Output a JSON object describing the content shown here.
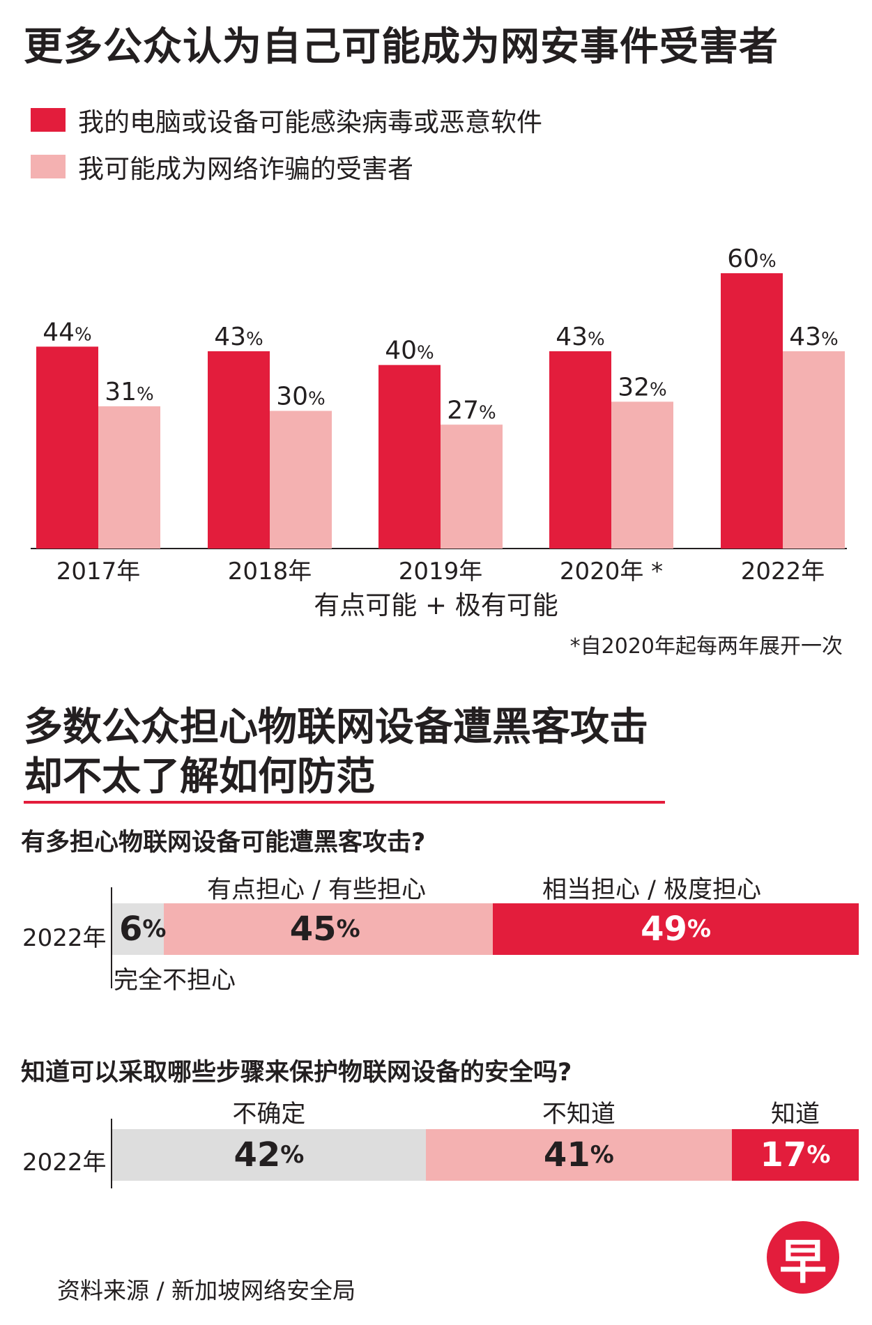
{
  "section1": {
    "title": "更多公众认为自己可能成为网安事件受害者",
    "legend": [
      {
        "label": "我的电脑或设备可能感染病毒或恶意软件",
        "color": "#e31d3c"
      },
      {
        "label": "我可能成为网络诈骗的受害者",
        "color": "#f4b1b1"
      }
    ],
    "xlabel": "有点可能 + 极有可能",
    "footnote": "*自2020年起每两年展开一次"
  },
  "chart_data": {
    "type": "bar",
    "title": "更多公众认为自己可能成为网安事件受害者",
    "categories": [
      "2017年",
      "2018年",
      "2019年",
      "2020年 *",
      "2022年"
    ],
    "series": [
      {
        "name": "我的电脑或设备可能感染病毒或恶意软件",
        "values": [
          44,
          43,
          40,
          43,
          60
        ],
        "color": "#e31d3c"
      },
      {
        "name": "我可能成为网络诈骗的受害者",
        "values": [
          31,
          30,
          27,
          32,
          43
        ],
        "color": "#f4b1b1"
      }
    ],
    "unit": "%",
    "xlabel": "有点可能 + 极有可能",
    "ylabel": "",
    "ylim": [
      0,
      60
    ],
    "grid": false,
    "legend": "top-left"
  },
  "section2": {
    "title_line1": "多数公众担心物联网设备遭黑客攻击",
    "title_line2": "却不太了解如何防范"
  },
  "q1": {
    "question": "有多担心物联网设备可能遭黑客攻击?",
    "year": "2022年",
    "segments": [
      {
        "label": "完全不担心",
        "value": 6,
        "color": "#e0e0e0",
        "text_color": "#231f20"
      },
      {
        "label": "有点担心 / 有些担心",
        "value": 45,
        "color": "#f4b1b1",
        "text_color": "#231f20"
      },
      {
        "label": "相当担心 / 极度担心",
        "value": 49,
        "color": "#e31d3c",
        "text_color": "#ffffff"
      }
    ]
  },
  "q2": {
    "question": "知道可以采取哪些步骤来保护物联网设备的安全吗?",
    "year": "2022年",
    "segments": [
      {
        "label": "不确定",
        "value": 42,
        "color": "#dddddd",
        "text_color": "#231f20"
      },
      {
        "label": "不知道",
        "value": 41,
        "color": "#f4b1b1",
        "text_color": "#231f20"
      },
      {
        "label": "知道",
        "value": 17,
        "color": "#e31d3c",
        "text_color": "#ffffff"
      }
    ]
  },
  "unit_symbol": "%",
  "source": "资料来源 / 新加坡网络安全局",
  "logo_char": "早"
}
